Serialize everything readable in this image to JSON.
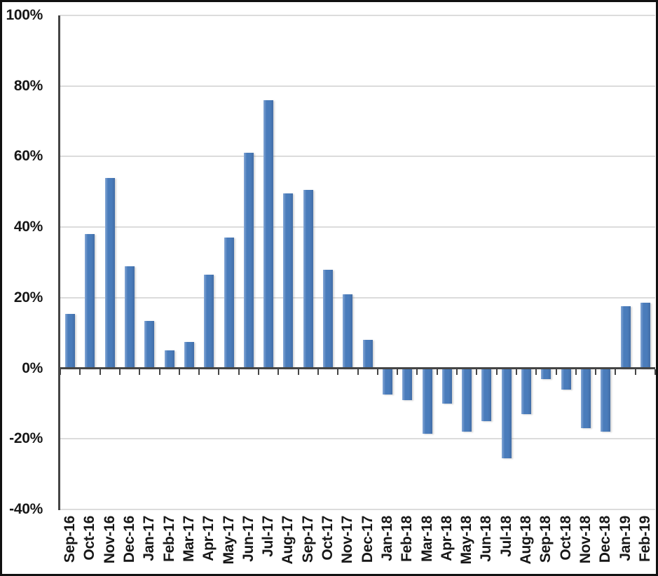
{
  "chart_data": {
    "type": "bar",
    "title": "",
    "xlabel": "",
    "ylabel": "",
    "categories": [
      "Sep-16",
      "Oct-16",
      "Nov-16",
      "Dec-16",
      "Jan-17",
      "Feb-17",
      "Mar-17",
      "Apr-17",
      "May-17",
      "Jun-17",
      "Jul-17",
      "Aug-17",
      "Sep-17",
      "Oct-17",
      "Nov-17",
      "Dec-17",
      "Jan-18",
      "Feb-18",
      "Mar-18",
      "Apr-18",
      "May-18",
      "Jun-18",
      "Jul-18",
      "Aug-18",
      "Sep-18",
      "Oct-18",
      "Nov-18",
      "Dec-18",
      "Jan-19",
      "Feb-19"
    ],
    "values": [
      15.5,
      38,
      54,
      29,
      13.5,
      5,
      7.5,
      26.5,
      37,
      61,
      76,
      49.5,
      50.5,
      28,
      21,
      8,
      -7.5,
      -9,
      -18.5,
      -10,
      -18,
      -15,
      -25.5,
      -13,
      -3,
      -6,
      -17,
      -18,
      17.5,
      18.5
    ],
    "ylim": [
      -40,
      100
    ],
    "ytick_step": 20,
    "y_tick_labels": [
      "100%",
      "80%",
      "60%",
      "40%",
      "20%",
      "0%",
      "-20%",
      "-40%"
    ],
    "grid": true,
    "legend": "none",
    "value_format": "percent",
    "colors": {
      "bar": "#4a7cbb",
      "bar_light_edge": "#85a7d6",
      "bar_dark_edge": "#436ea7",
      "gridline": "#dcdcdc",
      "axis_line": "#454545",
      "text": "#171717",
      "background": "#ffffff",
      "frame_border": "#111111"
    }
  }
}
